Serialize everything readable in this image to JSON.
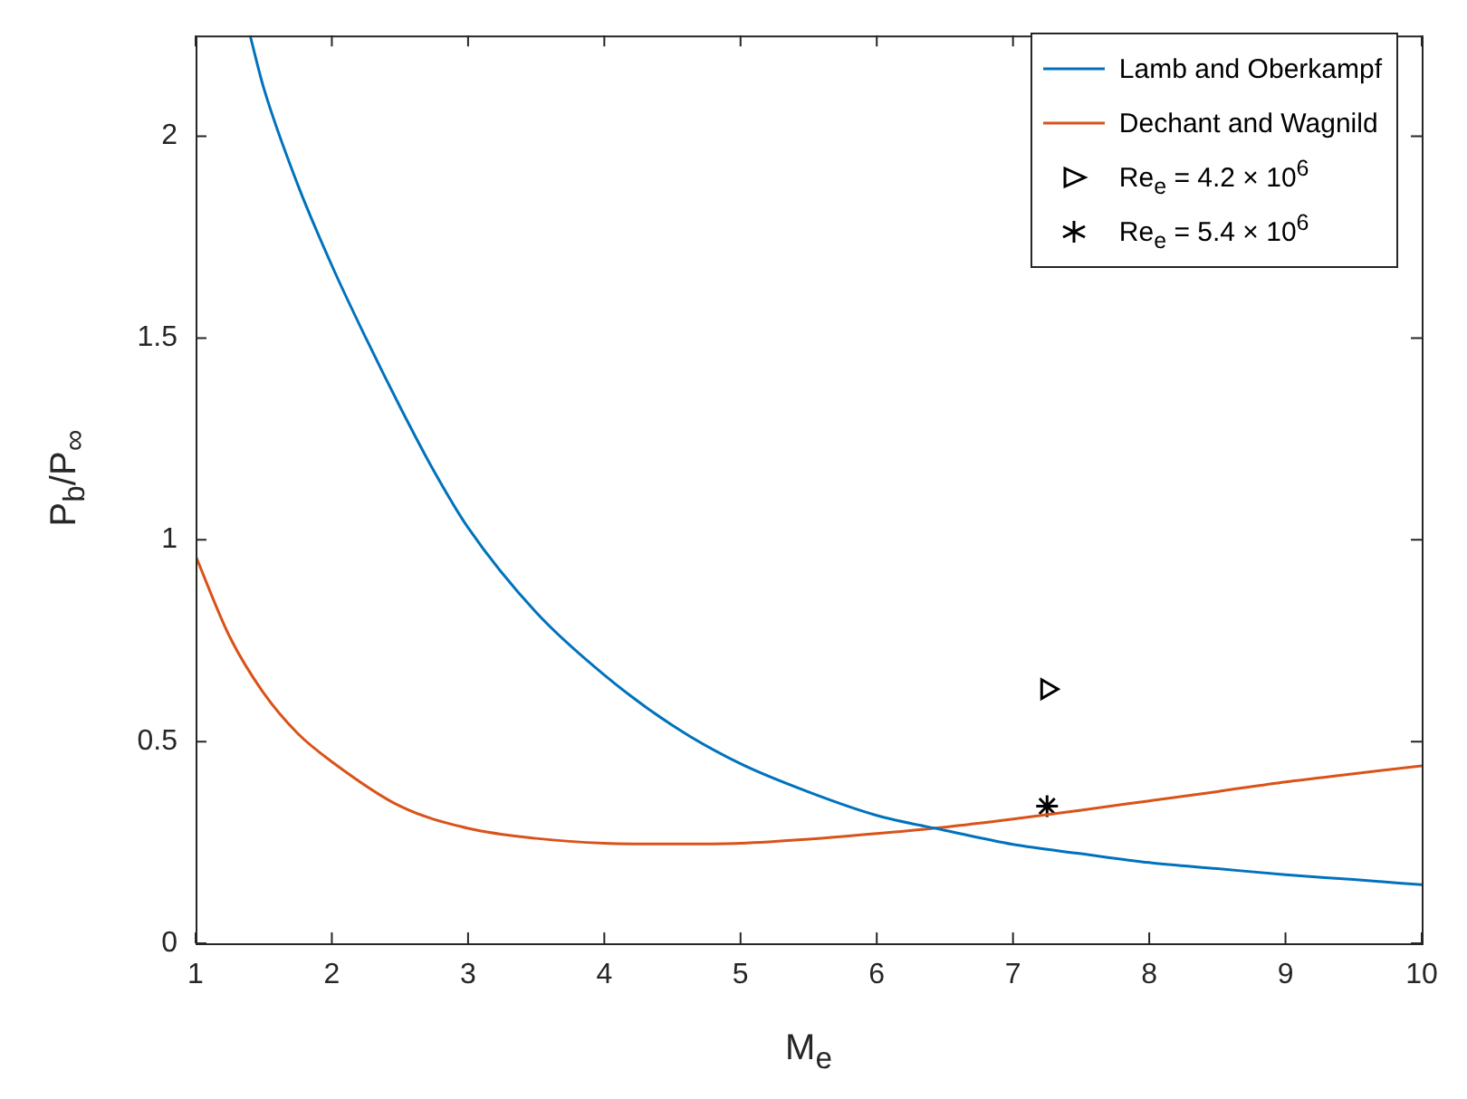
{
  "chart_data": {
    "type": "line",
    "xlabel": "M$_{e}$",
    "ylabel": "P$_{b}$/P$_{∞}$",
    "xlim": [
      1,
      10
    ],
    "ylim": [
      0,
      2.25
    ],
    "xticks": [
      1,
      2,
      3,
      4,
      5,
      6,
      7,
      8,
      9,
      10
    ],
    "yticks": [
      0,
      0.5,
      1,
      1.5,
      2
    ],
    "grid": false,
    "legend": "top right",
    "marker": "none",
    "line_style": "solid",
    "series": [
      {
        "name": "Lamb and Oberkampf",
        "color": "#0072bd",
        "x": [
          1.4,
          1.5,
          1.75,
          2,
          2.25,
          2.5,
          2.75,
          3,
          3.5,
          4,
          4.5,
          5,
          5.5,
          6,
          6.5,
          7,
          7.5,
          8,
          8.5,
          9,
          9.5,
          10
        ],
        "values": [
          2.25,
          2.12,
          1.88,
          1.68,
          1.5,
          1.33,
          1.17,
          1.03,
          0.82,
          0.665,
          0.54,
          0.445,
          0.375,
          0.317,
          0.28,
          0.245,
          0.222,
          0.2,
          0.185,
          0.17,
          0.158,
          0.145
        ]
      },
      {
        "name": "Dechant and Wagnild",
        "color": "#d95319",
        "x": [
          1,
          1.25,
          1.5,
          1.75,
          2,
          2.5,
          3,
          3.5,
          4,
          4.5,
          5,
          5.5,
          6,
          6.5,
          7,
          7.5,
          8,
          8.5,
          9,
          9.5,
          10
        ],
        "values": [
          0.96,
          0.76,
          0.62,
          0.52,
          0.45,
          0.34,
          0.285,
          0.26,
          0.248,
          0.246,
          0.248,
          0.258,
          0.272,
          0.288,
          0.308,
          0.33,
          0.353,
          0.376,
          0.4,
          0.42,
          0.44
        ]
      },
      {
        "name": "Re$_{e}$ = 4.2 × 10$^{6}$",
        "type": "scatter",
        "marker": "triangle",
        "color": "#000000",
        "x": [
          7.25
        ],
        "values": [
          0.63
        ]
      },
      {
        "name": "Re$_{e}$ = 5.4 × 10$^{6}$",
        "type": "scatter",
        "marker": "cross",
        "color": "#000000",
        "x": [
          7.25
        ],
        "values": [
          0.34
        ]
      }
    ]
  }
}
